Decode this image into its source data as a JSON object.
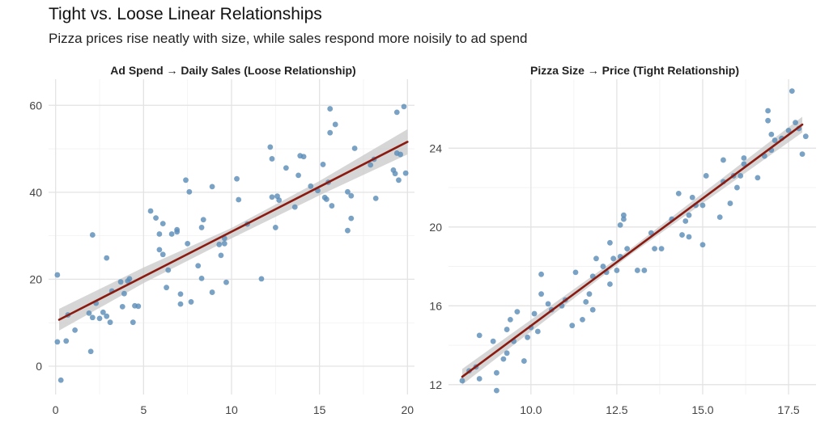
{
  "title": "Tight vs. Loose Linear Relationships",
  "subtitle": "Pizza prices rise neatly with size, while sales respond more noisily to ad spend",
  "colors": {
    "points": "#5b8db8",
    "fit_line": "#8b1a10",
    "band": "#c8c8c8"
  },
  "chart_data": [
    {
      "type": "scatter",
      "title": "Ad Spend → Daily Sales (Loose Relationship)",
      "xlabel": "",
      "ylabel": "",
      "xlim": [
        -0.4,
        20.4
      ],
      "ylim": [
        -6.5,
        66
      ],
      "xticks": [
        0,
        5,
        10,
        15,
        20
      ],
      "xtick_labels": [
        "0",
        "5",
        "10",
        "15",
        "20"
      ],
      "yticks": [
        0,
        20,
        40,
        60
      ],
      "ytick_labels": [
        "0",
        "20",
        "40",
        "60"
      ],
      "grid": true,
      "fit": {
        "x": [
          0.2,
          20
        ],
        "y": [
          10.7,
          51.6
        ]
      },
      "band": {
        "x": [
          0.2,
          5,
          10,
          15,
          20
        ],
        "lower": [
          8.2,
          19.1,
          29.4,
          39.3,
          48.7
        ],
        "upper": [
          13.2,
          22.7,
          31.8,
          42.6,
          54.5
        ]
      },
      "points": [
        [
          0.1,
          21
        ],
        [
          0.1,
          5.6
        ],
        [
          0.3,
          -3.2
        ],
        [
          0.6,
          5.8
        ],
        [
          0.7,
          11.8
        ],
        [
          1.1,
          8.3
        ],
        [
          1.9,
          12.2
        ],
        [
          2.0,
          3.4
        ],
        [
          2.1,
          11.2
        ],
        [
          2.1,
          30.2
        ],
        [
          2.3,
          14.5
        ],
        [
          2.5,
          11.0
        ],
        [
          2.7,
          12.4
        ],
        [
          2.9,
          11.5
        ],
        [
          2.9,
          24.9
        ],
        [
          3.1,
          10.1
        ],
        [
          3.2,
          17.3
        ],
        [
          3.7,
          19.4
        ],
        [
          3.8,
          13.7
        ],
        [
          3.9,
          16.7
        ],
        [
          4.1,
          19.6
        ],
        [
          4.2,
          20.1
        ],
        [
          4.4,
          10.1
        ],
        [
          4.5,
          13.9
        ],
        [
          4.7,
          13.8
        ],
        [
          5.4,
          35.7
        ],
        [
          5.7,
          34.1
        ],
        [
          5.9,
          30.4
        ],
        [
          5.9,
          26.8
        ],
        [
          6.1,
          25.7
        ],
        [
          6.1,
          32.8
        ],
        [
          6.3,
          18.1
        ],
        [
          6.4,
          22.1
        ],
        [
          6.6,
          30.4
        ],
        [
          6.9,
          30.9
        ],
        [
          6.9,
          31.4
        ],
        [
          7.1,
          14.3
        ],
        [
          7.1,
          16.6
        ],
        [
          7.4,
          42.8
        ],
        [
          7.5,
          28.2
        ],
        [
          7.6,
          40.1
        ],
        [
          7.7,
          14.8
        ],
        [
          8.1,
          23.1
        ],
        [
          8.3,
          20.2
        ],
        [
          8.3,
          31.9
        ],
        [
          8.4,
          33.7
        ],
        [
          8.9,
          17.0
        ],
        [
          8.9,
          41.3
        ],
        [
          9.3,
          28.0
        ],
        [
          9.4,
          25.5
        ],
        [
          9.6,
          28.2
        ],
        [
          9.6,
          29.4
        ],
        [
          9.7,
          19.3
        ],
        [
          10.3,
          43.1
        ],
        [
          10.4,
          38.3
        ],
        [
          10.9,
          32.7
        ],
        [
          11.7,
          20.1
        ],
        [
          12.2,
          50.4
        ],
        [
          12.3,
          47.7
        ],
        [
          12.3,
          38.9
        ],
        [
          12.5,
          31.9
        ],
        [
          12.6,
          39.1
        ],
        [
          12.7,
          38.2
        ],
        [
          13.1,
          45.6
        ],
        [
          13.6,
          36.6
        ],
        [
          13.8,
          43.9
        ],
        [
          13.9,
          48.4
        ],
        [
          14.1,
          48.2
        ],
        [
          14.5,
          41.4
        ],
        [
          14.9,
          40.4
        ],
        [
          15.2,
          46.4
        ],
        [
          15.3,
          38.8
        ],
        [
          15.4,
          38.4
        ],
        [
          15.5,
          42.3
        ],
        [
          15.6,
          53.7
        ],
        [
          15.6,
          59.2
        ],
        [
          15.7,
          36.9
        ],
        [
          15.9,
          55.6
        ],
        [
          16.6,
          40.1
        ],
        [
          16.6,
          31.2
        ],
        [
          16.8,
          39.2
        ],
        [
          16.8,
          34.0
        ],
        [
          17.0,
          50.1
        ],
        [
          17.9,
          46.3
        ],
        [
          18.1,
          47.6
        ],
        [
          18.2,
          38.6
        ],
        [
          19.2,
          45.1
        ],
        [
          19.3,
          44.3
        ],
        [
          19.4,
          49.0
        ],
        [
          19.4,
          58.4
        ],
        [
          19.5,
          42.8
        ],
        [
          19.6,
          48.7
        ],
        [
          19.8,
          59.7
        ],
        [
          19.9,
          44.4
        ]
      ]
    },
    {
      "type": "scatter",
      "title": "Pizza Size → Price (Tight Relationship)",
      "xlabel": "",
      "ylabel": "",
      "xlim": [
        7.6,
        18.3
      ],
      "ylim": [
        11.5,
        27.5
      ],
      "xticks": [
        10,
        12.5,
        15,
        17.5
      ],
      "xtick_labels": [
        "10.0",
        "12.5",
        "15.0",
        "17.5"
      ],
      "yticks": [
        12,
        16,
        20,
        24
      ],
      "ytick_labels": [
        "12",
        "16",
        "20",
        "24"
      ],
      "grid": true,
      "fit": {
        "x": [
          8.0,
          17.9
        ],
        "y": [
          12.4,
          25.2
        ]
      },
      "band": {
        "x": [
          8.0,
          12.9,
          17.9
        ],
        "lower": [
          12.0,
          18.6,
          24.8
        ],
        "upper": [
          12.8,
          18.9,
          25.6
        ]
      },
      "points": [
        [
          8.0,
          12.2
        ],
        [
          8.2,
          12.7
        ],
        [
          8.4,
          12.9
        ],
        [
          8.5,
          12.3
        ],
        [
          8.5,
          14.5
        ],
        [
          8.9,
          14.2
        ],
        [
          9.0,
          11.7
        ],
        [
          9.0,
          12.6
        ],
        [
          9.2,
          13.3
        ],
        [
          9.3,
          14.8
        ],
        [
          9.3,
          13.6
        ],
        [
          9.4,
          15.3
        ],
        [
          9.5,
          14.2
        ],
        [
          9.6,
          15.7
        ],
        [
          9.8,
          13.2
        ],
        [
          9.9,
          14.4
        ],
        [
          10.0,
          14.9
        ],
        [
          10.1,
          15.6
        ],
        [
          10.2,
          14.7
        ],
        [
          10.3,
          16.6
        ],
        [
          10.3,
          17.6
        ],
        [
          10.5,
          16.1
        ],
        [
          10.6,
          15.8
        ],
        [
          10.9,
          16.0
        ],
        [
          11.0,
          16.3
        ],
        [
          11.2,
          15.0
        ],
        [
          11.3,
          17.7
        ],
        [
          11.5,
          15.3
        ],
        [
          11.6,
          16.2
        ],
        [
          11.7,
          16.6
        ],
        [
          11.8,
          17.5
        ],
        [
          11.8,
          15.8
        ],
        [
          11.9,
          18.4
        ],
        [
          12.1,
          18.0
        ],
        [
          12.2,
          17.7
        ],
        [
          12.3,
          19.2
        ],
        [
          12.3,
          17.1
        ],
        [
          12.4,
          18.4
        ],
        [
          12.5,
          17.8
        ],
        [
          12.6,
          20.1
        ],
        [
          12.7,
          20.6
        ],
        [
          12.7,
          20.4
        ],
        [
          12.8,
          18.9
        ],
        [
          12.6,
          18.5
        ],
        [
          13.1,
          17.8
        ],
        [
          13.3,
          17.8
        ],
        [
          13.5,
          19.7
        ],
        [
          13.6,
          18.9
        ],
        [
          13.8,
          18.9
        ],
        [
          14.1,
          20.4
        ],
        [
          14.3,
          21.7
        ],
        [
          14.4,
          19.6
        ],
        [
          14.5,
          20.3
        ],
        [
          14.6,
          19.5
        ],
        [
          14.6,
          20.6
        ],
        [
          14.7,
          21.5
        ],
        [
          14.8,
          21.1
        ],
        [
          15.0,
          19.1
        ],
        [
          15.0,
          21.1
        ],
        [
          15.1,
          22.6
        ],
        [
          15.5,
          20.5
        ],
        [
          15.6,
          23.4
        ],
        [
          15.6,
          22.3
        ],
        [
          15.8,
          21.2
        ],
        [
          15.9,
          22.6
        ],
        [
          16.0,
          22.0
        ],
        [
          16.1,
          22.6
        ],
        [
          16.2,
          23.5
        ],
        [
          16.2,
          23.2
        ],
        [
          16.6,
          22.5
        ],
        [
          16.9,
          25.9
        ],
        [
          16.9,
          25.4
        ],
        [
          17.0,
          23.9
        ],
        [
          17.0,
          24.7
        ],
        [
          17.1,
          24.4
        ],
        [
          17.3,
          24.5
        ],
        [
          17.5,
          24.9
        ],
        [
          17.6,
          26.9
        ],
        [
          17.7,
          25.3
        ],
        [
          17.8,
          25.0
        ],
        [
          17.9,
          23.7
        ],
        [
          18.0,
          24.6
        ],
        [
          16.8,
          23.6
        ]
      ]
    }
  ]
}
